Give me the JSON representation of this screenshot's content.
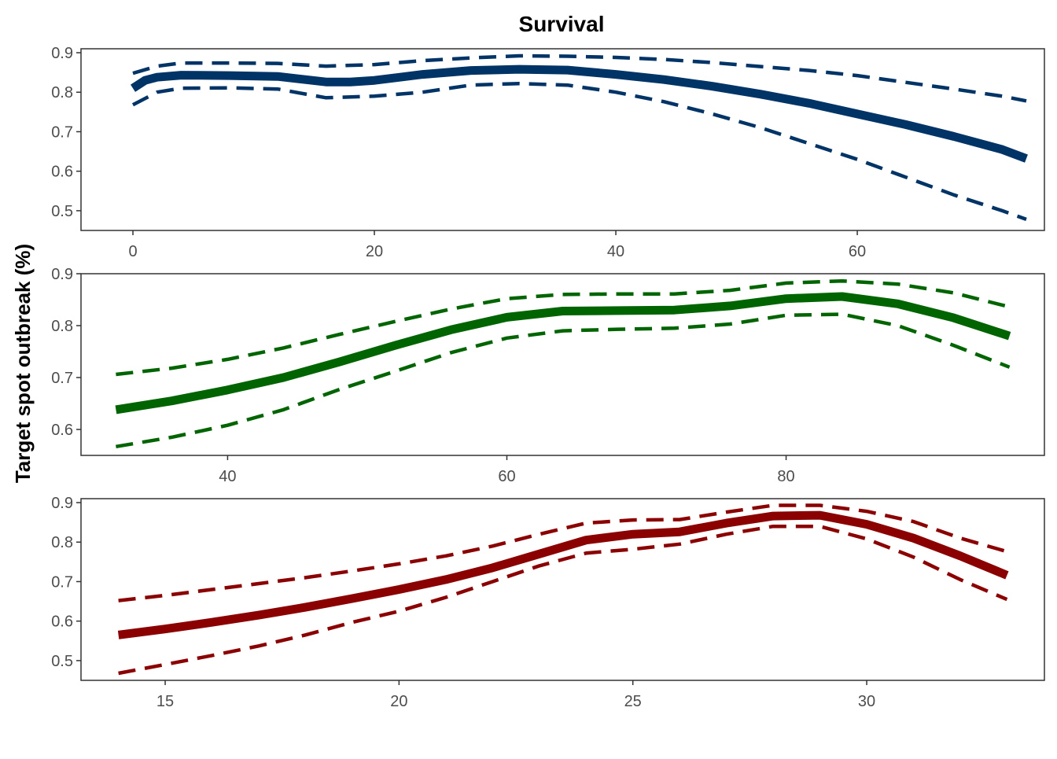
{
  "title": "Survival",
  "ylabel": "Target spot outbreak (%)",
  "chart_data": [
    {
      "type": "line",
      "color": "#003366",
      "xlim": [
        -4.3,
        75.5
      ],
      "ylim": [
        0.45,
        0.91
      ],
      "x_ticks": [
        0,
        20,
        40,
        60
      ],
      "y_ticks": [
        0.5,
        0.6,
        0.7,
        0.8,
        0.9
      ],
      "series": [
        {
          "role": "fit",
          "style": "solid",
          "x": [
            0,
            1,
            2,
            4,
            8,
            12,
            16,
            18,
            20,
            24,
            28,
            32,
            36,
            40,
            44,
            48,
            52,
            56,
            60,
            64,
            68,
            72,
            74
          ],
          "y": [
            0.81,
            0.83,
            0.838,
            0.843,
            0.842,
            0.84,
            0.826,
            0.826,
            0.83,
            0.845,
            0.855,
            0.858,
            0.856,
            0.845,
            0.832,
            0.815,
            0.795,
            0.772,
            0.745,
            0.718,
            0.688,
            0.655,
            0.632
          ]
        },
        {
          "role": "upper",
          "style": "dashed",
          "x": [
            0,
            2,
            4,
            8,
            12,
            16,
            20,
            24,
            28,
            32,
            36,
            40,
            44,
            48,
            52,
            56,
            60,
            64,
            68,
            72,
            74
          ],
          "y": [
            0.848,
            0.866,
            0.874,
            0.874,
            0.873,
            0.866,
            0.87,
            0.88,
            0.887,
            0.892,
            0.891,
            0.888,
            0.883,
            0.875,
            0.865,
            0.855,
            0.842,
            0.825,
            0.808,
            0.79,
            0.778
          ]
        },
        {
          "role": "lower",
          "style": "dashed",
          "x": [
            0,
            2,
            4,
            8,
            12,
            16,
            20,
            24,
            28,
            32,
            36,
            40,
            44,
            48,
            52,
            56,
            60,
            64,
            68,
            72,
            74
          ],
          "y": [
            0.768,
            0.8,
            0.81,
            0.811,
            0.808,
            0.786,
            0.79,
            0.8,
            0.818,
            0.822,
            0.818,
            0.8,
            0.776,
            0.745,
            0.71,
            0.67,
            0.63,
            0.585,
            0.54,
            0.5,
            0.478
          ]
        }
      ]
    },
    {
      "type": "line",
      "color": "#006400",
      "xlim": [
        29.5,
        98.5
      ],
      "ylim": [
        0.55,
        0.9
      ],
      "x_ticks": [
        40,
        60,
        80
      ],
      "y_ticks": [
        0.6,
        0.7,
        0.8,
        0.9
      ],
      "series": [
        {
          "role": "fit",
          "style": "solid",
          "x": [
            32,
            36,
            40,
            44,
            48,
            52,
            56,
            60,
            64,
            68,
            72,
            76,
            80,
            84,
            88,
            92,
            96
          ],
          "y": [
            0.638,
            0.655,
            0.676,
            0.7,
            0.73,
            0.762,
            0.792,
            0.816,
            0.828,
            0.829,
            0.83,
            0.838,
            0.852,
            0.856,
            0.842,
            0.815,
            0.78
          ]
        },
        {
          "role": "upper",
          "style": "dashed",
          "x": [
            32,
            36,
            40,
            44,
            48,
            52,
            56,
            60,
            64,
            68,
            72,
            76,
            80,
            84,
            88,
            92,
            96
          ],
          "y": [
            0.706,
            0.718,
            0.735,
            0.757,
            0.783,
            0.808,
            0.832,
            0.852,
            0.86,
            0.861,
            0.861,
            0.868,
            0.882,
            0.886,
            0.88,
            0.863,
            0.836
          ]
        },
        {
          "role": "lower",
          "style": "dashed",
          "x": [
            32,
            36,
            40,
            44,
            48,
            52,
            56,
            60,
            64,
            68,
            72,
            76,
            80,
            84,
            88,
            92,
            96
          ],
          "y": [
            0.567,
            0.585,
            0.608,
            0.638,
            0.677,
            0.712,
            0.748,
            0.776,
            0.79,
            0.793,
            0.795,
            0.803,
            0.82,
            0.822,
            0.8,
            0.762,
            0.72
          ]
        }
      ]
    },
    {
      "type": "line",
      "color": "#8b0000",
      "xlim": [
        13.2,
        33.8
      ],
      "ylim": [
        0.45,
        0.91
      ],
      "x_ticks": [
        15,
        20,
        25,
        30
      ],
      "y_ticks": [
        0.5,
        0.6,
        0.7,
        0.8,
        0.9
      ],
      "series": [
        {
          "role": "fit",
          "style": "solid",
          "x": [
            14,
            15,
            16,
            17,
            18,
            19,
            20,
            21,
            22,
            23,
            24,
            25,
            26,
            27,
            28,
            29,
            30,
            31,
            32,
            33
          ],
          "y": [
            0.565,
            0.58,
            0.597,
            0.615,
            0.635,
            0.657,
            0.68,
            0.705,
            0.735,
            0.77,
            0.805,
            0.82,
            0.826,
            0.848,
            0.866,
            0.868,
            0.845,
            0.81,
            0.765,
            0.716
          ]
        },
        {
          "role": "upper",
          "style": "dashed",
          "x": [
            14,
            15,
            16,
            17,
            18,
            19,
            20,
            21,
            22,
            23,
            24,
            25,
            26,
            27,
            28,
            29,
            30,
            31,
            32,
            33
          ],
          "y": [
            0.652,
            0.665,
            0.68,
            0.695,
            0.71,
            0.727,
            0.745,
            0.765,
            0.79,
            0.82,
            0.848,
            0.856,
            0.857,
            0.876,
            0.893,
            0.893,
            0.878,
            0.852,
            0.81,
            0.776
          ]
        },
        {
          "role": "lower",
          "style": "dashed",
          "x": [
            14,
            15,
            16,
            17,
            18,
            19,
            20,
            21,
            22,
            23,
            24,
            25,
            26,
            27,
            28,
            29,
            30,
            31,
            32,
            33
          ],
          "y": [
            0.468,
            0.49,
            0.513,
            0.537,
            0.565,
            0.597,
            0.625,
            0.66,
            0.7,
            0.74,
            0.772,
            0.782,
            0.795,
            0.82,
            0.84,
            0.84,
            0.808,
            0.762,
            0.705,
            0.655
          ]
        }
      ]
    }
  ]
}
